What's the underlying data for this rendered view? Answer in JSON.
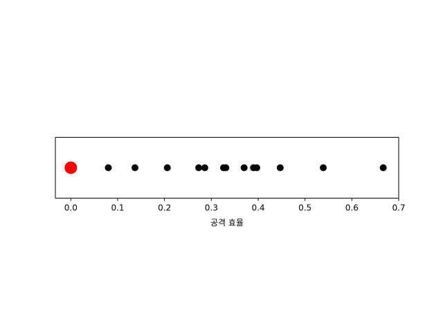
{
  "chart_data": {
    "type": "scatter",
    "title": "",
    "xlabel": "공격 효율",
    "ylabel": "",
    "xlim": [
      -0.033,
      0.7
    ],
    "xticks": [
      0.0,
      0.1,
      0.2,
      0.3,
      0.4,
      0.5,
      0.6,
      0.7
    ],
    "xtick_labels": [
      "0.0",
      "0.1",
      "0.2",
      "0.3",
      "0.4",
      "0.5",
      "0.6",
      "0.7"
    ],
    "grid": false,
    "yaxis_visible": false,
    "highlight": {
      "x": 0.0,
      "color": "#ff0000"
    },
    "points": {
      "x": [
        0.08,
        0.137,
        0.206,
        0.273,
        0.286,
        0.326,
        0.331,
        0.37,
        0.39,
        0.397,
        0.447,
        0.539,
        0.667
      ],
      "color": "#000000"
    }
  }
}
